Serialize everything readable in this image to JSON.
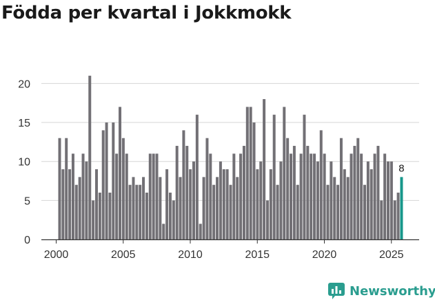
{
  "chart_data": {
    "type": "bar",
    "title": "Födda per kvartal i Jokkmokk",
    "xlabel": "",
    "ylabel": "",
    "ylim": [
      0,
      22.5
    ],
    "yticks": [
      0,
      5,
      10,
      15,
      20
    ],
    "xticks": [
      2000,
      2005,
      2010,
      2015,
      2020,
      2025
    ],
    "start_year": 2000,
    "periods_per_year": 4,
    "grid": true,
    "colors": {
      "bar": "#727075",
      "highlight": "#17978b",
      "grid": "#d6d6d6",
      "axis": "#333333"
    },
    "values": [
      13,
      9,
      13,
      9,
      11,
      7,
      8,
      11,
      10,
      21,
      5,
      9,
      6,
      14,
      15,
      6,
      15,
      11,
      17,
      13,
      11,
      7,
      8,
      7,
      7,
      8,
      6,
      11,
      11,
      11,
      8,
      2,
      9,
      6,
      5,
      12,
      8,
      14,
      12,
      9,
      10,
      16,
      2,
      8,
      13,
      11,
      7,
      8,
      10,
      9,
      9,
      7,
      11,
      8,
      11,
      12,
      17,
      17,
      15,
      9,
      10,
      18,
      5,
      9,
      16,
      7,
      10,
      17,
      13,
      11,
      12,
      7,
      11,
      16,
      12,
      11,
      11,
      10,
      14,
      11,
      7,
      10,
      8,
      7,
      13,
      9,
      8,
      11,
      12,
      13,
      11,
      7,
      10,
      9,
      11,
      12,
      5,
      11,
      10,
      10,
      5,
      6,
      8
    ],
    "data_labels": [
      {
        "index": 102,
        "text": "8"
      }
    ]
  },
  "brand": {
    "name": "Newsworthy",
    "icon": "newsworthy-chart-icon"
  }
}
